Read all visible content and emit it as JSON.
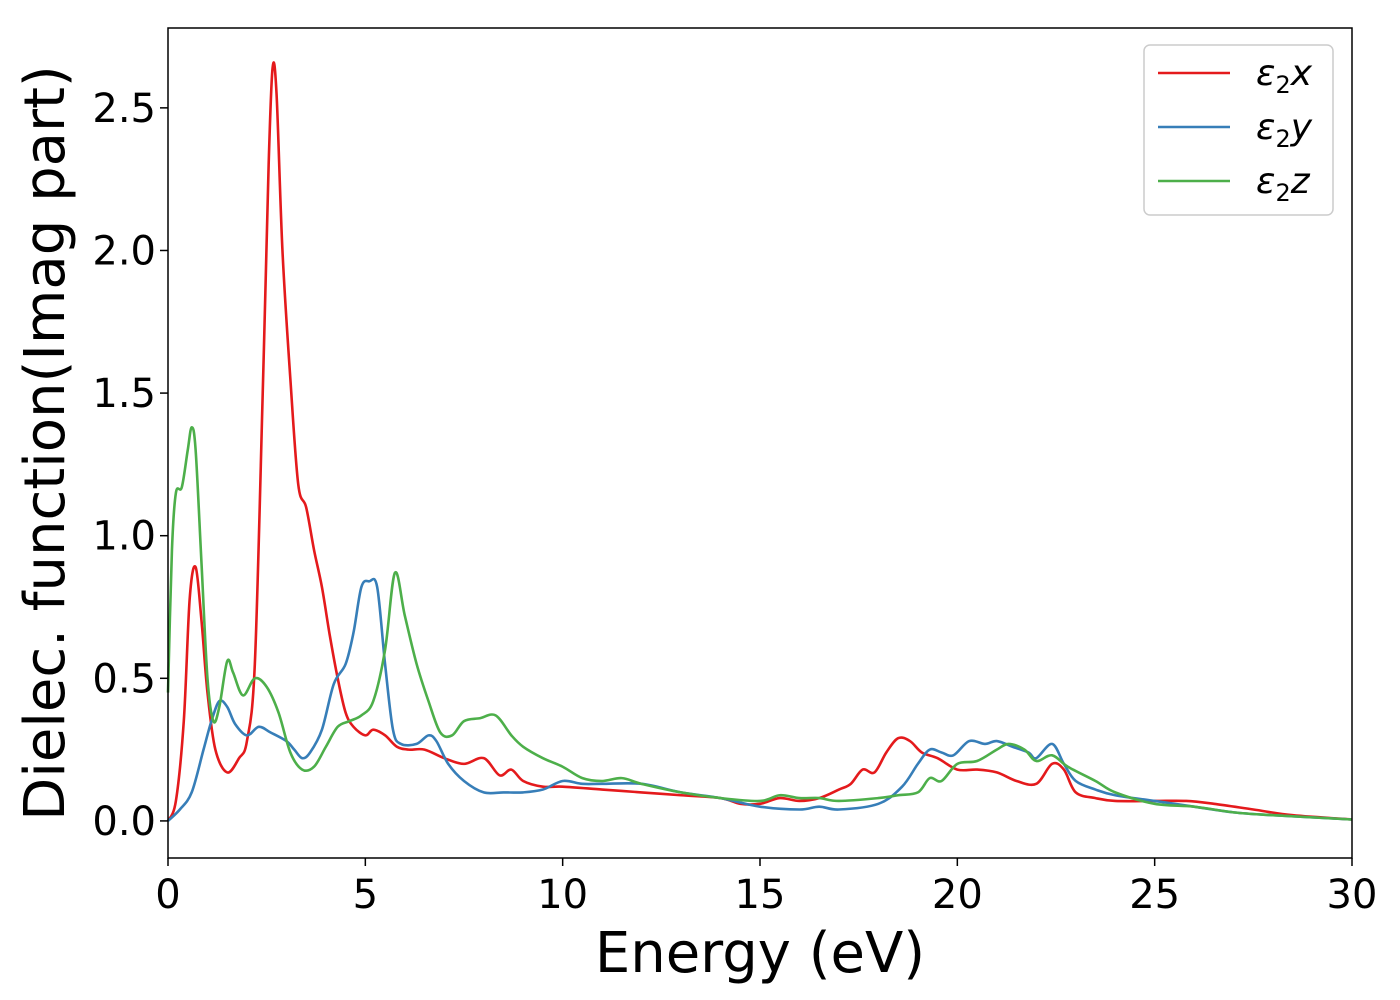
{
  "chart_data": {
    "type": "line",
    "xlabel": "Energy (eV)",
    "ylabel": "Dielec. function(Imag part)",
    "xlim": [
      0,
      30
    ],
    "ylim": [
      -0.13,
      2.78
    ],
    "x_ticks": [
      0,
      5,
      10,
      15,
      20,
      25,
      30
    ],
    "x_tick_labels": [
      "0",
      "5",
      "10",
      "15",
      "20",
      "25",
      "30"
    ],
    "y_ticks": [
      0.0,
      0.5,
      1.0,
      1.5,
      2.0,
      2.5
    ],
    "y_tick_labels": [
      "0.0",
      "0.5",
      "1.0",
      "1.5",
      "2.0",
      "2.5"
    ],
    "grid": false,
    "legend_position": "top-right",
    "series": [
      {
        "name": "ε₂x",
        "legend_base": "ε",
        "legend_sub": "2",
        "legend_axis": "x",
        "color": "#e41a1c",
        "points": [
          [
            0,
            0
          ],
          [
            0.2,
            0.07
          ],
          [
            0.4,
            0.35
          ],
          [
            0.55,
            0.78
          ],
          [
            0.7,
            0.89
          ],
          [
            0.85,
            0.7
          ],
          [
            1.0,
            0.45
          ],
          [
            1.2,
            0.25
          ],
          [
            1.5,
            0.17
          ],
          [
            1.8,
            0.22
          ],
          [
            2.0,
            0.28
          ],
          [
            2.2,
            0.55
          ],
          [
            2.4,
            1.5
          ],
          [
            2.55,
            2.3
          ],
          [
            2.65,
            2.64
          ],
          [
            2.75,
            2.55
          ],
          [
            2.9,
            2.0
          ],
          [
            3.1,
            1.55
          ],
          [
            3.3,
            1.18
          ],
          [
            3.5,
            1.1
          ],
          [
            3.7,
            0.95
          ],
          [
            3.9,
            0.82
          ],
          [
            4.1,
            0.65
          ],
          [
            4.3,
            0.5
          ],
          [
            4.5,
            0.38
          ],
          [
            4.7,
            0.33
          ],
          [
            5.0,
            0.3
          ],
          [
            5.2,
            0.32
          ],
          [
            5.5,
            0.3
          ],
          [
            5.8,
            0.26
          ],
          [
            6.1,
            0.25
          ],
          [
            6.5,
            0.25
          ],
          [
            7.0,
            0.22
          ],
          [
            7.5,
            0.2
          ],
          [
            8.0,
            0.22
          ],
          [
            8.4,
            0.16
          ],
          [
            8.7,
            0.18
          ],
          [
            9.0,
            0.14
          ],
          [
            9.5,
            0.12
          ],
          [
            10.0,
            0.12
          ],
          [
            11.0,
            0.11
          ],
          [
            12.0,
            0.1
          ],
          [
            13.0,
            0.09
          ],
          [
            14.0,
            0.08
          ],
          [
            14.5,
            0.06
          ],
          [
            15.0,
            0.06
          ],
          [
            15.5,
            0.08
          ],
          [
            16.0,
            0.07
          ],
          [
            16.5,
            0.08
          ],
          [
            17.0,
            0.11
          ],
          [
            17.3,
            0.13
          ],
          [
            17.6,
            0.18
          ],
          [
            17.9,
            0.17
          ],
          [
            18.2,
            0.24
          ],
          [
            18.5,
            0.29
          ],
          [
            18.8,
            0.28
          ],
          [
            19.1,
            0.24
          ],
          [
            19.5,
            0.22
          ],
          [
            20.0,
            0.18
          ],
          [
            20.5,
            0.18
          ],
          [
            21.0,
            0.17
          ],
          [
            21.5,
            0.14
          ],
          [
            22.0,
            0.13
          ],
          [
            22.4,
            0.2
          ],
          [
            22.7,
            0.18
          ],
          [
            23.0,
            0.1
          ],
          [
            23.5,
            0.08
          ],
          [
            24.0,
            0.07
          ],
          [
            25.0,
            0.07
          ],
          [
            25.8,
            0.07
          ],
          [
            26.5,
            0.06
          ],
          [
            27.5,
            0.04
          ],
          [
            28.5,
            0.02
          ],
          [
            30.0,
            0.005
          ]
        ]
      },
      {
        "name": "ε₂y",
        "legend_base": "ε",
        "legend_sub": "2",
        "legend_axis": "y",
        "color": "#377eb8",
        "points": [
          [
            0,
            0
          ],
          [
            0.3,
            0.04
          ],
          [
            0.6,
            0.1
          ],
          [
            0.9,
            0.25
          ],
          [
            1.1,
            0.35
          ],
          [
            1.3,
            0.42
          ],
          [
            1.5,
            0.4
          ],
          [
            1.7,
            0.34
          ],
          [
            2.0,
            0.3
          ],
          [
            2.3,
            0.33
          ],
          [
            2.6,
            0.31
          ],
          [
            3.0,
            0.28
          ],
          [
            3.2,
            0.25
          ],
          [
            3.4,
            0.22
          ],
          [
            3.6,
            0.24
          ],
          [
            3.9,
            0.32
          ],
          [
            4.2,
            0.48
          ],
          [
            4.5,
            0.55
          ],
          [
            4.7,
            0.66
          ],
          [
            4.9,
            0.82
          ],
          [
            5.1,
            0.84
          ],
          [
            5.3,
            0.82
          ],
          [
            5.5,
            0.55
          ],
          [
            5.7,
            0.32
          ],
          [
            5.9,
            0.27
          ],
          [
            6.3,
            0.27
          ],
          [
            6.6,
            0.3
          ],
          [
            6.8,
            0.28
          ],
          [
            7.1,
            0.2
          ],
          [
            7.5,
            0.14
          ],
          [
            8.0,
            0.1
          ],
          [
            8.5,
            0.1
          ],
          [
            9.0,
            0.1
          ],
          [
            9.5,
            0.11
          ],
          [
            10.0,
            0.14
          ],
          [
            10.5,
            0.13
          ],
          [
            11.0,
            0.13
          ],
          [
            12.0,
            0.13
          ],
          [
            13.0,
            0.1
          ],
          [
            14.0,
            0.08
          ],
          [
            15.0,
            0.05
          ],
          [
            16.0,
            0.04
          ],
          [
            16.5,
            0.05
          ],
          [
            17.0,
            0.04
          ],
          [
            18.0,
            0.06
          ],
          [
            18.6,
            0.12
          ],
          [
            19.0,
            0.2
          ],
          [
            19.3,
            0.25
          ],
          [
            19.6,
            0.24
          ],
          [
            19.9,
            0.23
          ],
          [
            20.3,
            0.28
          ],
          [
            20.7,
            0.27
          ],
          [
            21.0,
            0.28
          ],
          [
            21.4,
            0.26
          ],
          [
            21.8,
            0.24
          ],
          [
            22.0,
            0.22
          ],
          [
            22.4,
            0.27
          ],
          [
            22.7,
            0.2
          ],
          [
            23.0,
            0.14
          ],
          [
            23.5,
            0.11
          ],
          [
            24.0,
            0.09
          ],
          [
            25.0,
            0.07
          ],
          [
            26.0,
            0.05
          ],
          [
            27.0,
            0.03
          ],
          [
            28.0,
            0.02
          ],
          [
            30.0,
            0.005
          ]
        ]
      },
      {
        "name": "ε₂z",
        "legend_base": "ε",
        "legend_sub": "2",
        "legend_axis": "z",
        "color": "#4daf4a",
        "points": [
          [
            0,
            0.45
          ],
          [
            0.1,
            0.95
          ],
          [
            0.2,
            1.15
          ],
          [
            0.35,
            1.17
          ],
          [
            0.5,
            1.3
          ],
          [
            0.6,
            1.38
          ],
          [
            0.7,
            1.3
          ],
          [
            0.85,
            0.9
          ],
          [
            1.0,
            0.5
          ],
          [
            1.15,
            0.35
          ],
          [
            1.3,
            0.4
          ],
          [
            1.5,
            0.56
          ],
          [
            1.65,
            0.52
          ],
          [
            1.9,
            0.44
          ],
          [
            2.2,
            0.5
          ],
          [
            2.5,
            0.47
          ],
          [
            2.8,
            0.38
          ],
          [
            3.1,
            0.24
          ],
          [
            3.4,
            0.18
          ],
          [
            3.7,
            0.19
          ],
          [
            4.0,
            0.26
          ],
          [
            4.3,
            0.33
          ],
          [
            4.6,
            0.35
          ],
          [
            4.9,
            0.37
          ],
          [
            5.2,
            0.42
          ],
          [
            5.5,
            0.6
          ],
          [
            5.75,
            0.87
          ],
          [
            6.0,
            0.72
          ],
          [
            6.3,
            0.55
          ],
          [
            6.6,
            0.42
          ],
          [
            6.9,
            0.31
          ],
          [
            7.2,
            0.3
          ],
          [
            7.5,
            0.35
          ],
          [
            7.9,
            0.36
          ],
          [
            8.3,
            0.37
          ],
          [
            8.7,
            0.3
          ],
          [
            9.0,
            0.26
          ],
          [
            9.5,
            0.22
          ],
          [
            10.0,
            0.19
          ],
          [
            10.5,
            0.15
          ],
          [
            11.0,
            0.14
          ],
          [
            11.5,
            0.15
          ],
          [
            12.0,
            0.13
          ],
          [
            13.0,
            0.1
          ],
          [
            14.0,
            0.08
          ],
          [
            15.0,
            0.07
          ],
          [
            15.5,
            0.09
          ],
          [
            16.0,
            0.08
          ],
          [
            16.5,
            0.08
          ],
          [
            17.0,
            0.07
          ],
          [
            18.0,
            0.08
          ],
          [
            18.5,
            0.09
          ],
          [
            19.0,
            0.1
          ],
          [
            19.3,
            0.15
          ],
          [
            19.6,
            0.14
          ],
          [
            20.0,
            0.2
          ],
          [
            20.5,
            0.21
          ],
          [
            21.0,
            0.25
          ],
          [
            21.3,
            0.27
          ],
          [
            21.7,
            0.25
          ],
          [
            22.0,
            0.21
          ],
          [
            22.4,
            0.23
          ],
          [
            22.8,
            0.19
          ],
          [
            23.5,
            0.14
          ],
          [
            24.0,
            0.1
          ],
          [
            25.0,
            0.06
          ],
          [
            26.0,
            0.05
          ],
          [
            27.0,
            0.03
          ],
          [
            28.0,
            0.02
          ],
          [
            30.0,
            0.005
          ]
        ]
      }
    ]
  }
}
